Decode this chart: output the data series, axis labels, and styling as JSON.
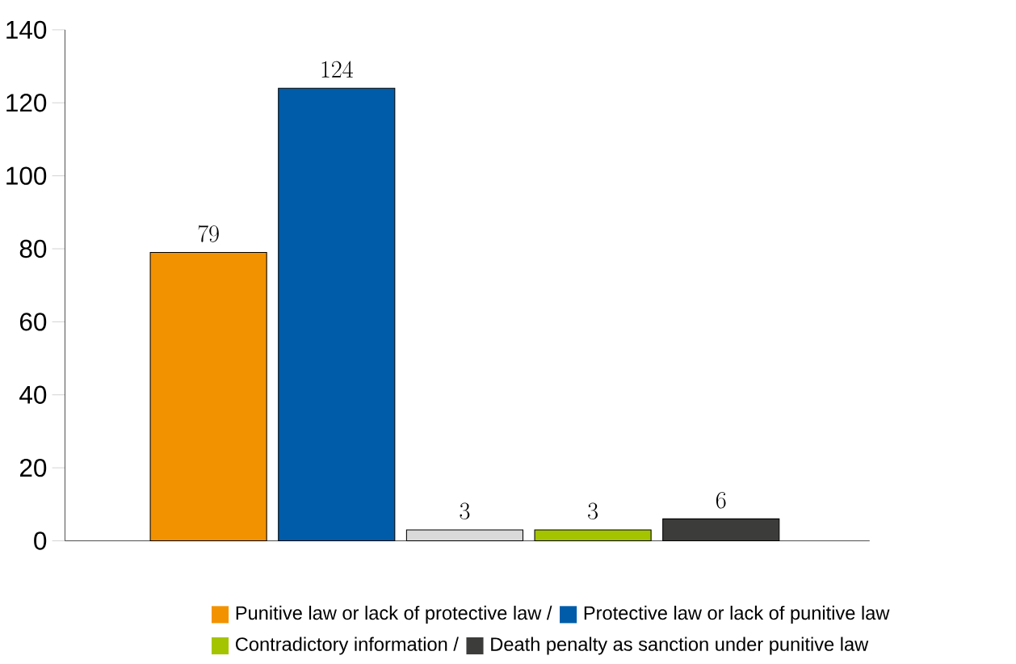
{
  "chart_data": {
    "type": "bar",
    "categories": [
      null,
      null,
      null,
      null,
      null
    ],
    "series": [
      {
        "name": "Punitive law or lack of protective law /",
        "color": "#f39200",
        "values": [
          79,
          null,
          null,
          null,
          null
        ]
      },
      {
        "name": "Protective law or lack of punitive law",
        "color": "#005ca9",
        "values": [
          null,
          124,
          null,
          null,
          null
        ]
      },
      {
        "color": "#dadada",
        "values": [
          null,
          null,
          3,
          null,
          null
        ]
      },
      {
        "name": "Contradictory information /",
        "color": "#a5c400",
        "values": [
          null,
          null,
          null,
          3,
          null
        ]
      },
      {
        "name": "Death penalty as sanction under punitive law",
        "color": "#3c3c3b",
        "values": [
          null,
          null,
          null,
          null,
          6
        ]
      }
    ],
    "ylim": [
      0,
      140
    ],
    "yticks": [
      0,
      20,
      40,
      60,
      80,
      100,
      120,
      140
    ],
    "data_labels": true,
    "legend": "bottom"
  }
}
